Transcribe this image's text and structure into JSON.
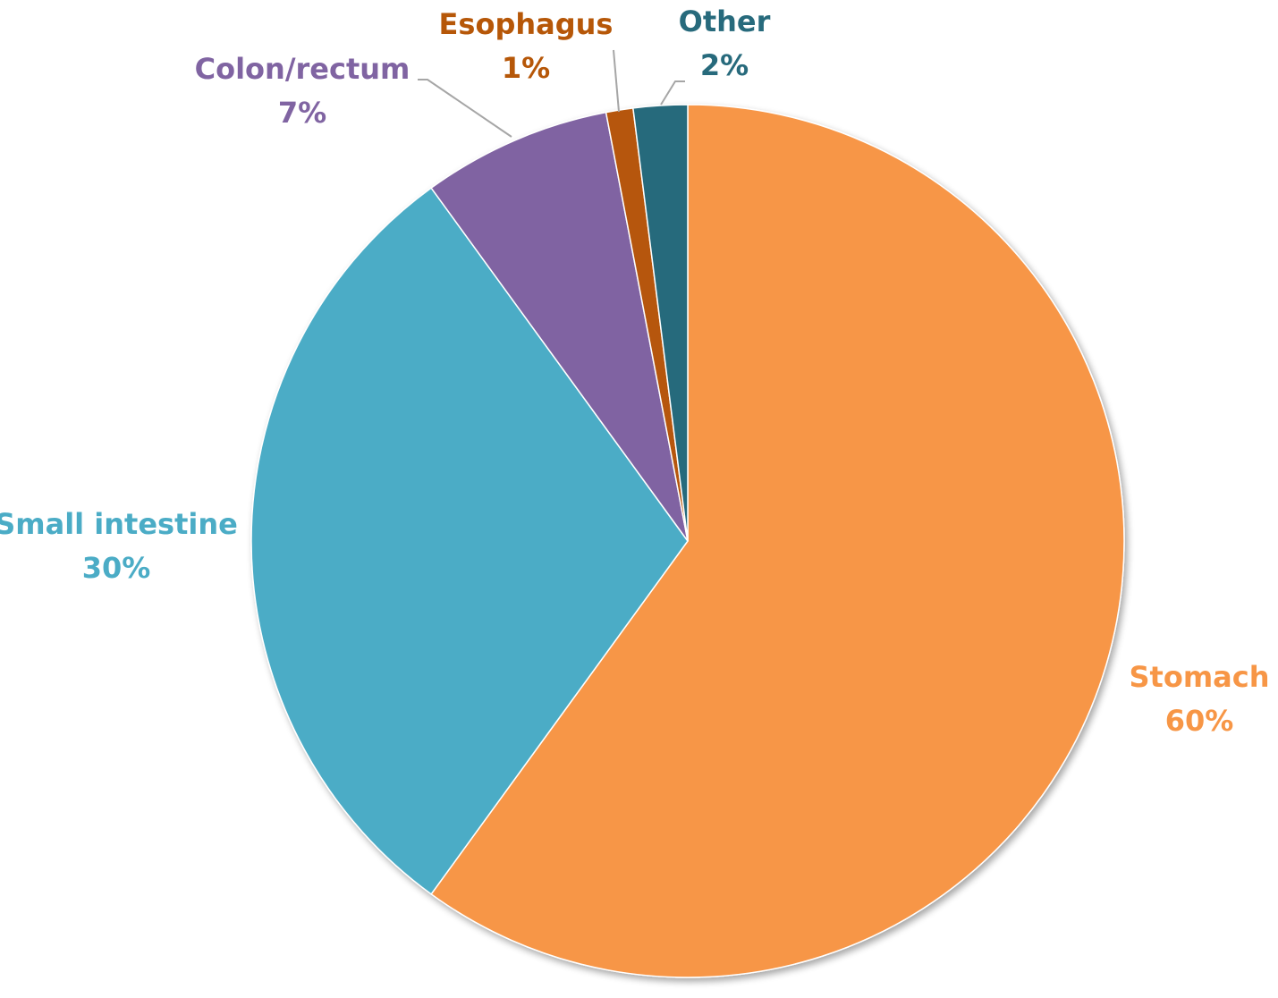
{
  "chart_data": {
    "type": "pie",
    "title": "",
    "start_angle_deg": 0,
    "direction": "clockwise",
    "slices": [
      {
        "label": "Stomach",
        "value": 60,
        "value_text": "60%",
        "color": "#F79646"
      },
      {
        "label": "Small intestine",
        "value": 30,
        "value_text": "30%",
        "color": "#4BACC6"
      },
      {
        "label": "Colon/rectum",
        "value": 7,
        "value_text": "7%",
        "color": "#8064A2"
      },
      {
        "label": "Esophagus",
        "value": 1,
        "value_text": "1%",
        "color": "#B65708"
      },
      {
        "label": "Other",
        "value": 2,
        "value_text": "2%",
        "color": "#276A7C"
      }
    ],
    "leader_line_color": "#A6A6A6",
    "legend": "none"
  }
}
